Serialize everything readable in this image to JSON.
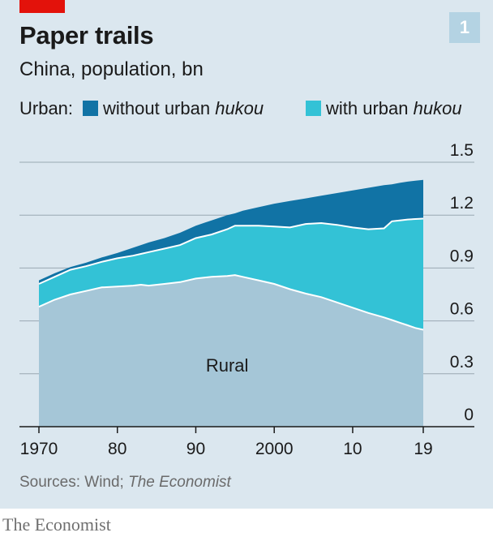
{
  "badge": "1",
  "chart_data": {
    "type": "area",
    "title": "Paper trails",
    "subtitle": "China, population, bn",
    "legend_prefix": "Urban:",
    "series": [
      {
        "name": "Rural",
        "color": "#a5c6d7"
      },
      {
        "name_pre": "with urban ",
        "name_em": "hukou",
        "color": "#33c2d6"
      },
      {
        "name_pre": "without urban ",
        "name_em": "hukou",
        "color": "#1173a5"
      }
    ],
    "x": [
      1970,
      1972,
      1974,
      1976,
      1978,
      1980,
      1982,
      1983,
      1984,
      1986,
      1988,
      1990,
      1992,
      1994,
      1995,
      1996,
      1998,
      2000,
      2002,
      2004,
      2006,
      2008,
      2010,
      2012,
      2014,
      2015,
      2016,
      2017,
      2018,
      2019
    ],
    "rural": [
      0.68,
      0.72,
      0.75,
      0.77,
      0.79,
      0.795,
      0.8,
      0.805,
      0.8,
      0.81,
      0.82,
      0.84,
      0.85,
      0.855,
      0.86,
      0.85,
      0.83,
      0.81,
      0.78,
      0.755,
      0.735,
      0.705,
      0.675,
      0.645,
      0.62,
      0.605,
      0.59,
      0.575,
      0.56,
      0.55
    ],
    "with_urban_hukou": [
      0.81,
      0.85,
      0.89,
      0.91,
      0.935,
      0.955,
      0.97,
      0.98,
      0.99,
      1.01,
      1.03,
      1.07,
      1.09,
      1.12,
      1.14,
      1.14,
      1.14,
      1.135,
      1.13,
      1.15,
      1.155,
      1.145,
      1.13,
      1.12,
      1.125,
      1.165,
      1.17,
      1.175,
      1.178,
      1.18
    ],
    "total": [
      0.83,
      0.87,
      0.905,
      0.93,
      0.96,
      0.985,
      1.015,
      1.03,
      1.045,
      1.07,
      1.1,
      1.14,
      1.17,
      1.2,
      1.21,
      1.225,
      1.245,
      1.265,
      1.28,
      1.295,
      1.31,
      1.325,
      1.34,
      1.355,
      1.37,
      1.375,
      1.383,
      1.39,
      1.395,
      1.4
    ],
    "x_ticks": [
      1970,
      1980,
      1990,
      2000,
      2010,
      2019
    ],
    "x_tick_labels": [
      "1970",
      "80",
      "90",
      "2000",
      "10",
      "19"
    ],
    "y_ticks": [
      0,
      0.3,
      0.6,
      0.9,
      1.2,
      1.5
    ],
    "y_tick_labels": [
      "0",
      "0.3",
      "0.6",
      "0.9",
      "1.2",
      "1.5"
    ],
    "xlim": [
      1970,
      2019
    ],
    "ylim": [
      0,
      1.5
    ],
    "grid": true,
    "annotation": {
      "text": "Rural",
      "x": 1994,
      "y": 0.35
    },
    "legend_position": "top"
  },
  "source": {
    "prefix": "Sources: Wind; ",
    "em": "The Economist"
  },
  "brand": "The Economist"
}
